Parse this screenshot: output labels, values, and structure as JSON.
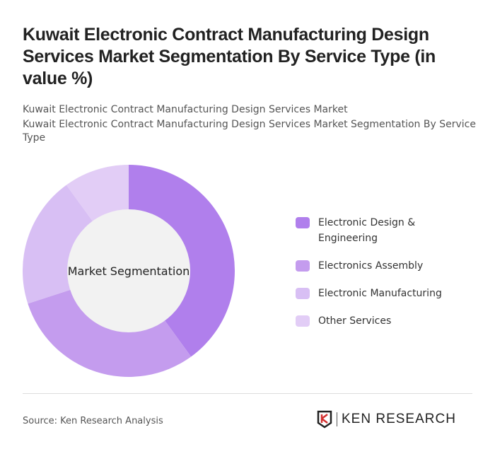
{
  "title": "Kuwait Electronic Contract Manufacturing Design Services Market Segmentation By Service Type (in value %)",
  "subtitle_1": "Kuwait Electronic Contract Manufacturing Design Services Market",
  "subtitle_2": "Kuwait Electronic Contract Manufacturing Design Services Market Segmentation By Service Type",
  "source": "Source: Ken Research Analysis",
  "logo_text": "KEN RESEARCH",
  "chart_data": {
    "type": "pie",
    "variant": "donut",
    "center_label": "Market Segmentation",
    "categories": [
      "Electronic Design & Engineering",
      "Electronics Assembly",
      "Electronic Manufacturing",
      "Other Services"
    ],
    "values": [
      40,
      30,
      20,
      10
    ],
    "colors": [
      "#b07fec",
      "#c49cee",
      "#d8bff4",
      "#e2cdf6"
    ],
    "legend_position": "right"
  }
}
